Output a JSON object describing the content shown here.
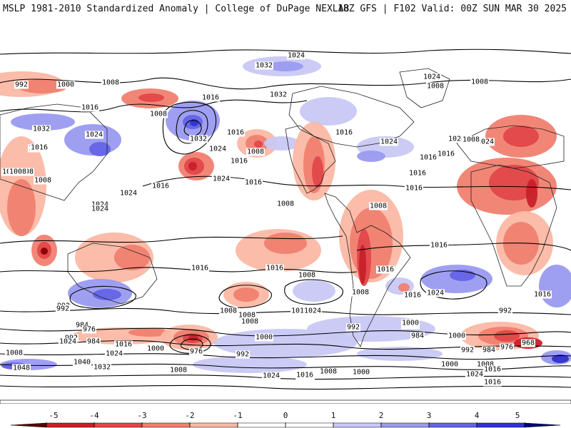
{
  "header": {
    "left_title": "MSLP 1981-2010 Standardized Anomaly | College of DuPage NEXLAB",
    "right_title": "18Z GFS | F102 Valid: 00Z SUN MAR 30 2025"
  },
  "colors": {
    "neg5": "#8b0000",
    "neg4": "#c8202a",
    "neg3": "#e0474a",
    "neg2": "#f08070",
    "neg1": "#fbb8a4",
    "pos1": "#c8c8f5",
    "pos2": "#9a9af0",
    "pos3": "#6464e6",
    "pos4": "#3232d2",
    "pos5": "#0a0ab4",
    "land_outline": "#222222",
    "isobar": "#000000"
  },
  "colorbar": {
    "ticks": [
      "-5",
      "-4",
      "-3",
      "-2",
      "-1",
      "0",
      "1",
      "2",
      "3",
      "4",
      "5"
    ],
    "arrow_left_color": "#5a0000",
    "arrow_right_color": "#000080"
  },
  "isobar_labels": [
    "1024",
    "1032",
    "1024",
    "992",
    "1000",
    "1008",
    "1008",
    "1016",
    "1016",
    "1008",
    "1032",
    "1024",
    "1016",
    "1024",
    "1016",
    "1032",
    "1024",
    "1008",
    "1016",
    "1008",
    "1008",
    "1016",
    "1008",
    "1016",
    "1024",
    "1024",
    "1016",
    "1016",
    "1016",
    "1016",
    "1024",
    "1024",
    "1008",
    "1008",
    "1008",
    "1008",
    "1016",
    "1016",
    "1024",
    "1016",
    "1016",
    "1008",
    "1016",
    "1024",
    "992",
    "1008",
    "1008",
    "1016",
    "1000",
    "992",
    "984",
    "976",
    "992",
    "984",
    "1016",
    "1000",
    "976",
    "1024",
    "1008",
    "1000",
    "984",
    "992",
    "984",
    "976",
    "968",
    "1000",
    "1008",
    "1016",
    "1040",
    "1032",
    "1048",
    "1008",
    "992",
    "1000",
    "1016",
    "1024",
    "1024",
    "1008",
    "1016",
    "1024",
    "1008",
    "1008",
    "1000",
    "992",
    "992",
    "1008",
    "1032",
    "1016",
    "1024",
    "1016",
    "1024",
    "1016",
    "1000",
    "1016"
  ]
}
